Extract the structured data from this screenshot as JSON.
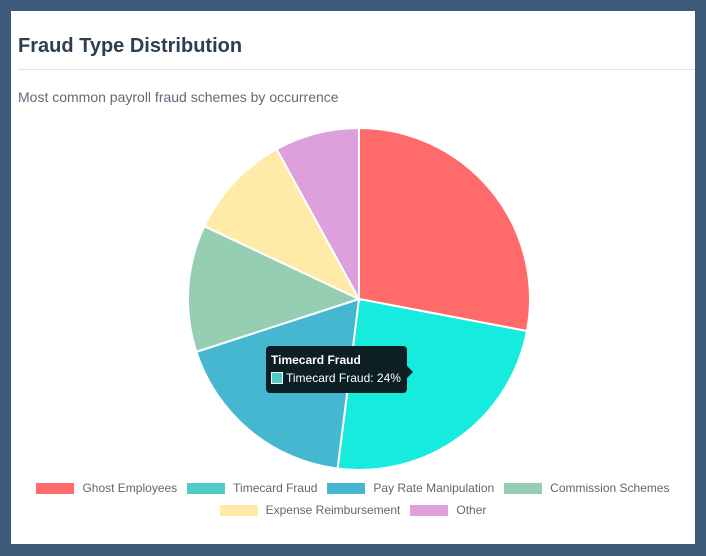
{
  "card": {
    "title": "Fraud Type Distribution",
    "subtitle": "Most common payroll fraud schemes by occurrence"
  },
  "chart_data": {
    "type": "pie",
    "title": "",
    "labels": [
      "Ghost Employees",
      "Timecard Fraud",
      "Pay Rate Manipulation",
      "Commission Schemes",
      "Expense Reimbursement",
      "Other"
    ],
    "values": [
      28,
      24,
      18,
      12,
      10,
      8
    ],
    "unit": "%",
    "colors": [
      "#ff6b6b",
      "#16ebdd",
      "#45b7d1",
      "#96ceb4",
      "#ffeaa7",
      "#dda0dd"
    ],
    "legend_colors": [
      "#ff6b6b",
      "#4ecdc4",
      "#45b7d1",
      "#96ceb4",
      "#ffeaa7",
      "#dda0dd"
    ],
    "legend_position": "bottom"
  },
  "tooltip": {
    "title": "Timecard Fraud",
    "body": "Timecard Fraud: 24%",
    "swatch_color": "#4ecdc4"
  }
}
